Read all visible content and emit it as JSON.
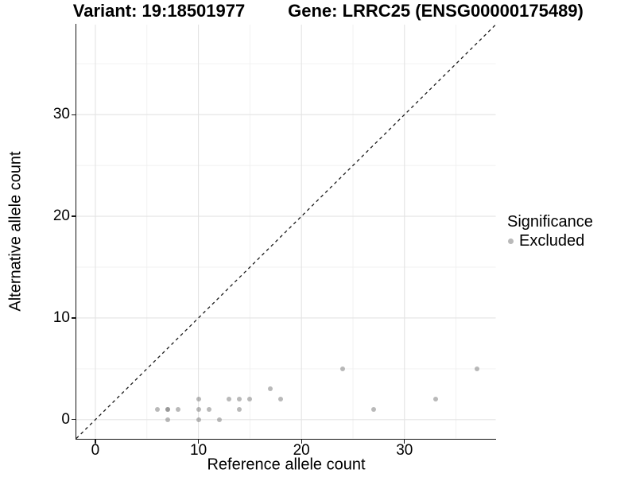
{
  "header": {
    "variant_title": "Variant: 19:18501977",
    "gene_title": "Gene: LRRC25 (ENSG00000175489)"
  },
  "legend": {
    "title": "Significance",
    "items": [
      {
        "label": "Excluded",
        "color": "#b9b9b9"
      }
    ]
  },
  "colors": {
    "point": "rgba(128,128,128,0.55)",
    "major_grid": "#e3e3e3",
    "minor_grid": "#f0f0f0",
    "axis": "#141414",
    "diagonal": "#1a1a1a"
  },
  "chart_data": {
    "type": "scatter",
    "title": "Variant: 19:18501977  /  Gene: LRRC25 (ENSG00000175489)",
    "xlabel": "Reference allele count",
    "ylabel": "Alternative allele count",
    "xlim": [
      -1.85,
      38.85
    ],
    "ylim": [
      -1.85,
      38.85
    ],
    "x_major_ticks": [
      0,
      10,
      20,
      30
    ],
    "y_major_ticks": [
      0,
      10,
      20,
      30
    ],
    "x_minor_ticks": [
      5,
      15,
      25,
      35
    ],
    "y_minor_ticks": [
      5,
      15,
      25,
      35
    ],
    "grid": true,
    "legend_position": "right",
    "diagonal_line": {
      "equation": "y = x",
      "style": "dashed"
    },
    "series": [
      {
        "name": "Excluded",
        "points": [
          [
            6,
            1
          ],
          [
            7,
            0
          ],
          [
            7,
            1
          ],
          [
            7,
            1
          ],
          [
            8,
            1
          ],
          [
            10,
            0
          ],
          [
            10,
            1
          ],
          [
            10,
            2
          ],
          [
            11,
            1
          ],
          [
            12,
            0
          ],
          [
            13,
            2
          ],
          [
            14,
            1
          ],
          [
            14,
            2
          ],
          [
            15,
            2
          ],
          [
            17,
            3
          ],
          [
            18,
            2
          ],
          [
            24,
            5
          ],
          [
            27,
            1
          ],
          [
            33,
            2
          ],
          [
            37,
            5
          ]
        ]
      }
    ]
  }
}
